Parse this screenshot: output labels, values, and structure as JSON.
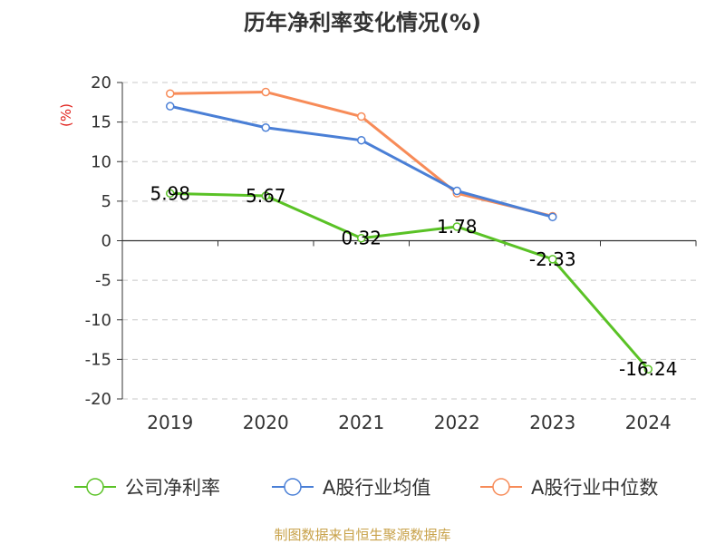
{
  "chart_data": {
    "type": "line",
    "title": "历年净利率变化情况(%)",
    "ylabel": "(%)",
    "xlabel": "",
    "categories": [
      "2019",
      "2020",
      "2021",
      "2022",
      "2023",
      "2024"
    ],
    "ylim": [
      -20,
      20
    ],
    "yticks": [
      20,
      15,
      10,
      5,
      0,
      -5,
      -10,
      -15,
      -20
    ],
    "grid": true,
    "legend_position": "bottom",
    "series": [
      {
        "name": "公司净利率",
        "color": "#5ac226",
        "values": [
          5.98,
          5.67,
          0.32,
          1.78,
          -2.33,
          -16.24
        ],
        "data_labels": [
          "5.98",
          "5.67",
          "0.32",
          "1.78",
          "-2.33",
          "-16.24"
        ]
      },
      {
        "name": "A股行业均值",
        "color": "#4a7fd6",
        "values": [
          17.0,
          14.3,
          12.7,
          6.3,
          3.0,
          null
        ]
      },
      {
        "name": "A股行业中位数",
        "color": "#f78b58",
        "values": [
          18.6,
          18.8,
          15.7,
          6.0,
          3.1,
          null
        ]
      }
    ],
    "source": "制图数据来自恒生聚源数据库"
  }
}
